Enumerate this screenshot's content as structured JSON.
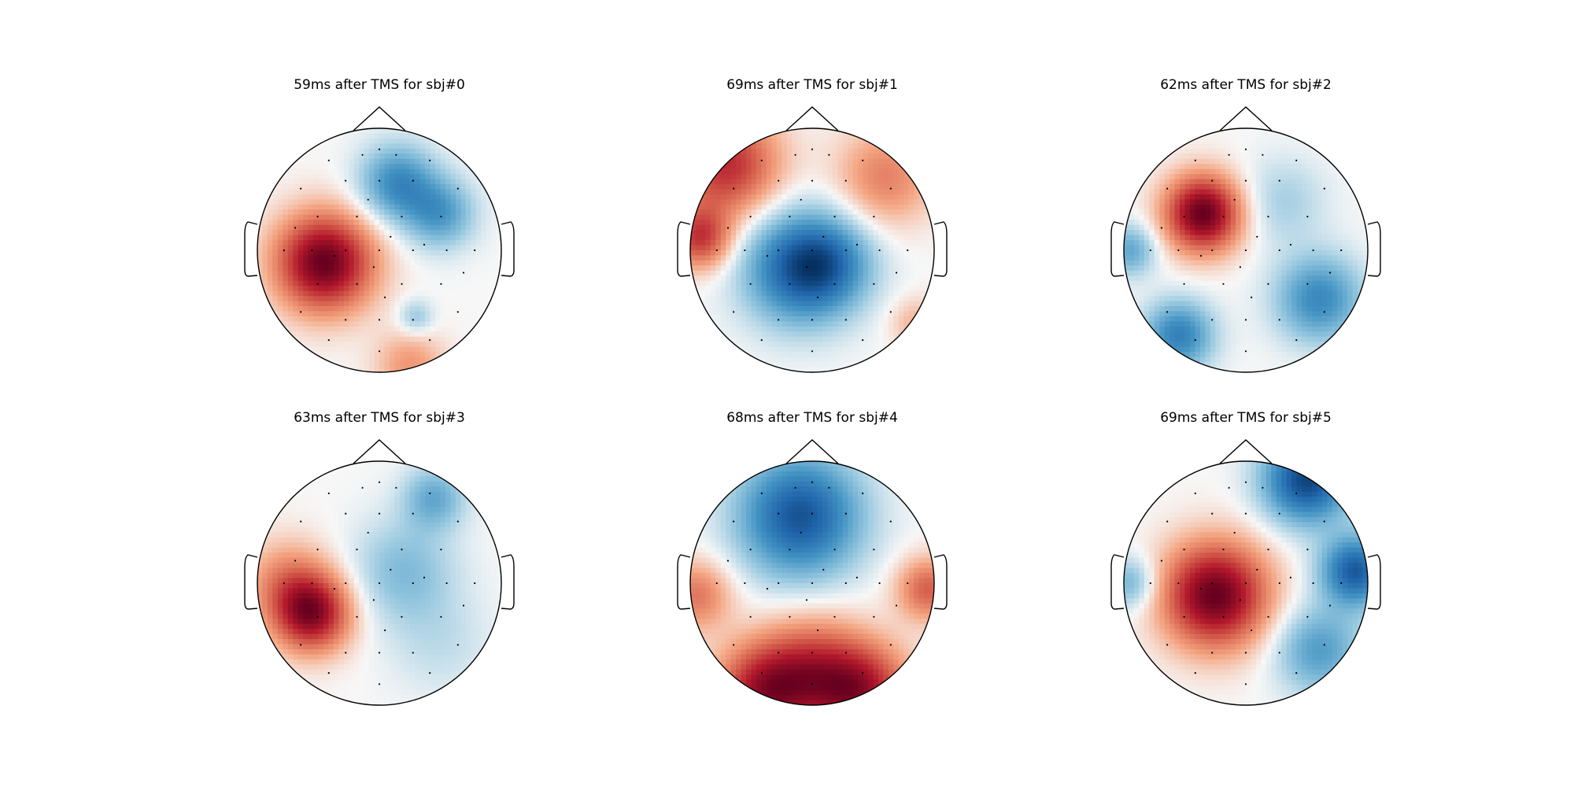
{
  "figure": {
    "background": "#ffffff",
    "colormap": "RdBu_r",
    "colors": {
      "strong_red": "#67001f",
      "red": "#d6604d",
      "white": "#f7f7f7",
      "blue": "#4393c3",
      "strong_blue": "#053061"
    }
  },
  "chart_data": [
    {
      "type": "topomap",
      "title": "59ms after TMS for sbj#0",
      "sources": [
        {
          "u": -0.45,
          "v": 0.1,
          "w": 1.0,
          "s": 0.28
        },
        {
          "u": 0.15,
          "v": -0.55,
          "w": -0.55,
          "s": 0.22
        },
        {
          "u": 0.5,
          "v": -0.3,
          "w": -0.45,
          "s": 0.2
        },
        {
          "u": 0.3,
          "v": 0.55,
          "w": -0.25,
          "s": 0.1
        },
        {
          "u": 0.25,
          "v": 0.95,
          "w": 0.3,
          "s": 0.2
        }
      ]
    },
    {
      "type": "topomap",
      "title": "69ms after TMS for sbj#1",
      "sources": [
        {
          "u": -0.7,
          "v": -0.7,
          "w": 1.0,
          "s": 0.3
        },
        {
          "u": -0.92,
          "v": -0.1,
          "w": 0.9,
          "s": 0.18
        },
        {
          "u": 0.6,
          "v": -0.6,
          "w": 0.55,
          "s": 0.28
        },
        {
          "u": -0.1,
          "v": 0.15,
          "w": -1.1,
          "s": 0.32
        },
        {
          "u": 0.15,
          "v": 0.1,
          "w": -0.5,
          "s": 0.25
        },
        {
          "u": 0.85,
          "v": 0.6,
          "w": 0.3,
          "s": 0.15
        }
      ]
    },
    {
      "type": "topomap",
      "title": "62ms after TMS for sbj#2",
      "sources": [
        {
          "u": -0.35,
          "v": -0.3,
          "w": 1.0,
          "s": 0.22
        },
        {
          "u": 0.6,
          "v": 0.4,
          "w": -0.55,
          "s": 0.25
        },
        {
          "u": -0.55,
          "v": 0.7,
          "w": -0.6,
          "s": 0.2
        },
        {
          "u": -0.95,
          "v": 0.0,
          "w": -0.4,
          "s": 0.15
        },
        {
          "u": 0.3,
          "v": -0.4,
          "w": -0.2,
          "s": 0.25
        }
      ]
    },
    {
      "type": "topomap",
      "title": "63ms after TMS for sbj#3",
      "sources": [
        {
          "u": -0.55,
          "v": 0.25,
          "w": 1.0,
          "s": 0.22
        },
        {
          "u": -0.75,
          "v": 0.0,
          "w": 0.4,
          "s": 0.25
        },
        {
          "u": 0.45,
          "v": -0.7,
          "w": -0.45,
          "s": 0.18
        },
        {
          "u": 0.2,
          "v": -0.1,
          "w": -0.35,
          "s": 0.3
        },
        {
          "u": 0.5,
          "v": 0.5,
          "w": -0.15,
          "s": 0.3
        }
      ]
    },
    {
      "type": "topomap",
      "title": "68ms after TMS for sbj#4",
      "sources": [
        {
          "u": -0.1,
          "v": -0.55,
          "w": -1.0,
          "s": 0.35
        },
        {
          "u": -0.4,
          "v": 0.9,
          "w": 0.9,
          "s": 0.28
        },
        {
          "u": 0.4,
          "v": 0.9,
          "w": 0.9,
          "s": 0.28
        },
        {
          "u": 0.0,
          "v": 0.7,
          "w": 0.6,
          "s": 0.3
        },
        {
          "u": -0.95,
          "v": 0.1,
          "w": 0.5,
          "s": 0.2
        },
        {
          "u": 0.95,
          "v": 0.05,
          "w": 0.6,
          "s": 0.18
        }
      ]
    },
    {
      "type": "topomap",
      "title": "69ms after TMS for sbj#5",
      "sources": [
        {
          "u": -0.25,
          "v": 0.1,
          "w": 1.0,
          "s": 0.3
        },
        {
          "u": 0.5,
          "v": -0.85,
          "w": -0.9,
          "s": 0.25
        },
        {
          "u": 0.9,
          "v": -0.1,
          "w": -0.8,
          "s": 0.2
        },
        {
          "u": 0.6,
          "v": 0.55,
          "w": -0.45,
          "s": 0.25
        },
        {
          "u": -0.95,
          "v": 0.0,
          "w": -0.35,
          "s": 0.15
        }
      ]
    }
  ]
}
